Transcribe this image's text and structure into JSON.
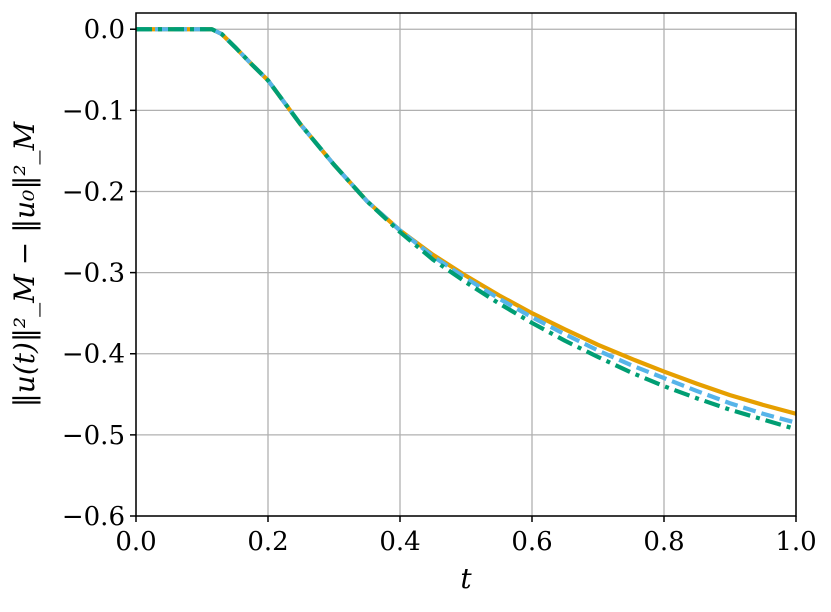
{
  "chart_data": {
    "type": "line",
    "title": "",
    "xlabel": "t",
    "ylabel": "‖u(t)‖²_M − ‖u₀‖²_M",
    "xlim": [
      0.0,
      1.0
    ],
    "ylim": [
      -0.6,
      0.02
    ],
    "grid": true,
    "legend": "none",
    "x_ticks": [
      "0.0",
      "0.2",
      "0.4",
      "0.6",
      "0.8",
      "1.0"
    ],
    "x_tick_values": [
      0.0,
      0.2,
      0.4,
      0.6,
      0.8,
      1.0
    ],
    "y_ticks": [
      "0.0",
      "−0.1",
      "−0.2",
      "−0.3",
      "−0.4",
      "−0.5",
      "−0.6"
    ],
    "y_tick_values": [
      0.0,
      -0.1,
      -0.2,
      -0.3,
      -0.4,
      -0.5,
      -0.6
    ],
    "x": [
      0.0,
      0.05,
      0.1,
      0.115,
      0.13,
      0.15,
      0.175,
      0.2,
      0.25,
      0.3,
      0.35,
      0.4,
      0.45,
      0.5,
      0.55,
      0.6,
      0.65,
      0.7,
      0.75,
      0.8,
      0.85,
      0.9,
      0.95,
      1.0
    ],
    "series": [
      {
        "color": "#E69F00",
        "style": "solid",
        "values": [
          0.0,
          0.0,
          0.0,
          0.0,
          -0.006,
          -0.022,
          -0.043,
          -0.063,
          -0.118,
          -0.167,
          -0.212,
          -0.248,
          -0.278,
          -0.304,
          -0.328,
          -0.35,
          -0.37,
          -0.389,
          -0.406,
          -0.422,
          -0.437,
          -0.451,
          -0.463,
          -0.474
        ]
      },
      {
        "color": "#56B4E9",
        "style": "dashed",
        "values": [
          0.0,
          0.0,
          0.0,
          0.0,
          -0.006,
          -0.022,
          -0.043,
          -0.063,
          -0.118,
          -0.167,
          -0.212,
          -0.248,
          -0.28,
          -0.307,
          -0.332,
          -0.355,
          -0.376,
          -0.396,
          -0.414,
          -0.43,
          -0.446,
          -0.461,
          -0.474,
          -0.485
        ]
      },
      {
        "color": "#009E73",
        "style": "dashdot",
        "values": [
          0.0,
          0.0,
          0.0,
          0.0,
          -0.006,
          -0.022,
          -0.043,
          -0.063,
          -0.118,
          -0.167,
          -0.212,
          -0.25,
          -0.284,
          -0.312,
          -0.338,
          -0.362,
          -0.384,
          -0.404,
          -0.423,
          -0.44,
          -0.455,
          -0.469,
          -0.481,
          -0.493
        ]
      }
    ]
  }
}
